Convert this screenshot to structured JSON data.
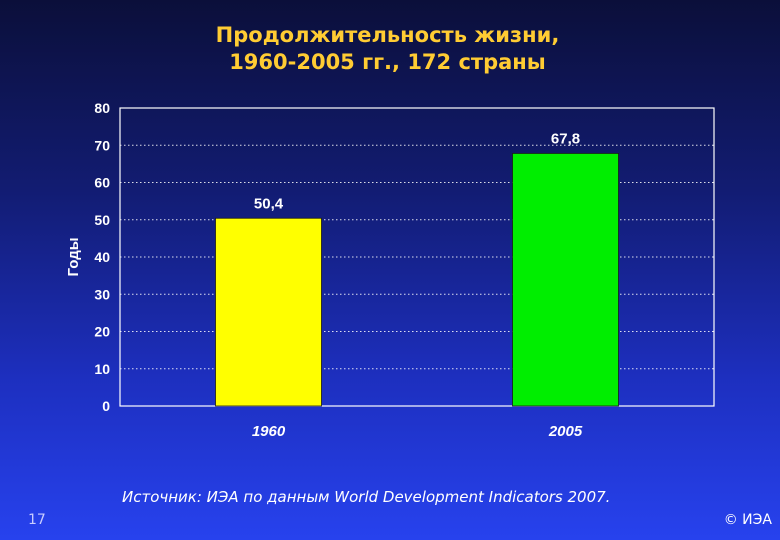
{
  "title_line1": "Продолжительность жизни,",
  "title_line2": "1960-2005 гг., 172 страны",
  "source": "Источник: ИЭА по данным World Development Indicators 2007.",
  "page_number": "17",
  "copyright": "© ИЭА",
  "chart_data": {
    "type": "bar",
    "categories": [
      "1960",
      "2005"
    ],
    "values": [
      50.4,
      67.8
    ],
    "value_labels": [
      "50,4",
      "67,8"
    ],
    "colors": [
      "#ffff00",
      "#00ee00"
    ],
    "ylabel": "Годы",
    "ylim": [
      0,
      80
    ],
    "yticks": [
      0,
      10,
      20,
      30,
      40,
      50,
      60,
      70,
      80
    ],
    "grid": true
  }
}
